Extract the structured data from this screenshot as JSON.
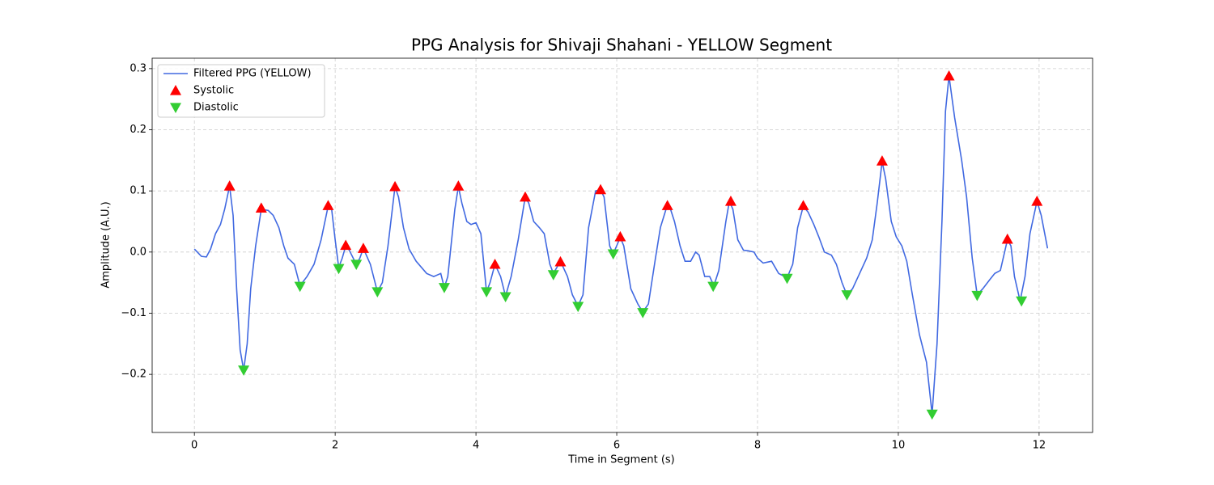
{
  "chart_data": {
    "type": "line",
    "title": "PPG Analysis for Shivaji Shahani - YELLOW Segment",
    "x_label": "Time in Segment (s)",
    "y_label": "Amplitude (A.U.)",
    "xlim": [
      -0.6,
      12.76
    ],
    "ylim": [
      -0.295,
      0.317
    ],
    "xticks": [
      0,
      2,
      4,
      6,
      8,
      10,
      12
    ],
    "yticks": [
      {
        "value": -0.2,
        "label": "−0.2"
      },
      {
        "value": -0.1,
        "label": "−0.1"
      },
      {
        "value": 0,
        "label": "0.0"
      },
      0.1,
      0.2,
      0.3
    ],
    "grid": true,
    "legend": "upper left",
    "series": [
      {
        "name": "Filtered PPG (YELLOW)",
        "type": "line",
        "color": "#4169e1",
        "x": [
          0,
          0.1,
          0.17,
          0.23,
          0.3,
          0.37,
          0.43,
          0.5,
          0.55,
          0.6,
          0.65,
          0.7,
          0.75,
          0.8,
          0.87,
          0.95,
          1.05,
          1.12,
          1.2,
          1.27,
          1.33,
          1.42,
          1.5,
          1.6,
          1.7,
          1.8,
          1.9,
          1.95,
          2.0,
          2.05,
          2.1,
          2.15,
          2.2,
          2.3,
          2.35,
          2.4,
          2.5,
          2.6,
          2.67,
          2.75,
          2.85,
          2.9,
          2.97,
          3.05,
          3.15,
          3.3,
          3.4,
          3.5,
          3.55,
          3.6,
          3.7,
          3.75,
          3.8,
          3.87,
          3.93,
          4.0,
          4.07,
          4.15,
          4.2,
          4.27,
          4.35,
          4.42,
          4.5,
          4.6,
          4.7,
          4.75,
          4.82,
          4.9,
          4.97,
          5.05,
          5.1,
          5.15,
          5.2,
          5.3,
          5.37,
          5.45,
          5.52,
          5.6,
          5.7,
          5.77,
          5.82,
          5.9,
          5.95,
          6.05,
          6.1,
          6.2,
          6.3,
          6.37,
          6.45,
          6.55,
          6.62,
          6.7,
          6.75,
          6.82,
          6.9,
          6.97,
          7.05,
          7.12,
          7.17,
          7.25,
          7.32,
          7.38,
          7.45,
          7.55,
          7.6,
          7.65,
          7.72,
          7.8,
          7.87,
          7.95,
          8.0,
          8.08,
          8.2,
          8.3,
          8.42,
          8.5,
          8.57,
          8.65,
          8.72,
          8.8,
          8.87,
          8.95,
          9.05,
          9.12,
          9.2,
          9.27,
          9.35,
          9.45,
          9.55,
          9.63,
          9.7,
          9.77,
          9.82,
          9.9,
          9.97,
          10.05,
          10.12,
          10.2,
          10.3,
          10.4,
          10.48,
          10.55,
          10.62,
          10.67,
          10.72,
          10.8,
          10.9,
          10.97,
          11.05,
          11.12,
          11.2,
          11.3,
          11.37,
          11.45,
          11.55,
          11.6,
          11.65,
          11.73,
          11.8,
          11.87,
          11.97,
          12.03,
          12.12
        ],
        "values": [
          0.005,
          -0.007,
          -0.008,
          0.005,
          0.03,
          0.045,
          0.07,
          0.108,
          0.06,
          -0.06,
          -0.16,
          -0.193,
          -0.15,
          -0.06,
          0.01,
          0.07,
          0.068,
          0.06,
          0.04,
          0.01,
          -0.01,
          -0.02,
          -0.055,
          -0.04,
          -0.02,
          0.02,
          0.075,
          0.07,
          0.02,
          -0.025,
          -0.01,
          0.01,
          0.003,
          -0.02,
          -0.01,
          0.006,
          -0.02,
          -0.065,
          -0.05,
          0.01,
          0.107,
          0.09,
          0.04,
          0.005,
          -0.015,
          -0.035,
          -0.04,
          -0.035,
          -0.058,
          -0.04,
          0.07,
          0.107,
          0.08,
          0.05,
          0.045,
          0.048,
          0.03,
          -0.065,
          -0.05,
          -0.02,
          -0.04,
          -0.072,
          -0.04,
          0.02,
          0.09,
          0.08,
          0.05,
          0.04,
          0.03,
          -0.02,
          -0.035,
          -0.025,
          -0.015,
          -0.04,
          -0.07,
          -0.088,
          -0.07,
          0.04,
          0.1,
          0.102,
          0.09,
          0.01,
          -0.003,
          0.024,
          0.01,
          -0.06,
          -0.085,
          -0.098,
          -0.085,
          -0.01,
          0.04,
          0.07,
          0.075,
          0.05,
          0.01,
          -0.015,
          -0.015,
          0.0,
          -0.005,
          -0.04,
          -0.04,
          -0.055,
          -0.03,
          0.05,
          0.083,
          0.07,
          0.02,
          0.003,
          0.002,
          0.0,
          -0.01,
          -0.018,
          -0.015,
          -0.035,
          -0.042,
          -0.02,
          0.04,
          0.075,
          0.065,
          0.045,
          0.025,
          0.0,
          -0.005,
          -0.02,
          -0.05,
          -0.07,
          -0.06,
          -0.035,
          -0.01,
          0.02,
          0.08,
          0.148,
          0.12,
          0.05,
          0.025,
          0.01,
          -0.015,
          -0.07,
          -0.135,
          -0.18,
          -0.265,
          -0.15,
          0.05,
          0.23,
          0.288,
          0.22,
          0.15,
          0.09,
          -0.01,
          -0.07,
          -0.06,
          -0.045,
          -0.035,
          -0.03,
          0.02,
          0.01,
          -0.04,
          -0.08,
          -0.04,
          0.03,
          0.083,
          0.06,
          0.006
        ]
      },
      {
        "name": "Systolic",
        "type": "scatter",
        "marker": "up",
        "color": "#ff0000",
        "x": [
          0.5,
          0.95,
          1.9,
          2.15,
          2.4,
          2.85,
          3.75,
          4.27,
          4.7,
          5.2,
          5.77,
          6.05,
          6.72,
          7.62,
          8.65,
          9.77,
          10.72,
          11.55,
          11.97
        ],
        "values": [
          0.108,
          0.072,
          0.076,
          0.011,
          0.006,
          0.107,
          0.108,
          -0.02,
          0.09,
          -0.016,
          0.102,
          0.025,
          0.076,
          0.083,
          0.076,
          0.149,
          0.288,
          0.021,
          0.083
        ]
      },
      {
        "name": "Diastolic",
        "type": "scatter",
        "marker": "down",
        "color": "#32cd32",
        "x": [
          0.7,
          1.5,
          2.05,
          2.3,
          2.6,
          3.55,
          4.15,
          4.42,
          5.1,
          5.45,
          5.95,
          6.37,
          7.37,
          8.42,
          9.27,
          10.48,
          11.12,
          11.75
        ],
        "values": [
          -0.193,
          -0.056,
          -0.027,
          -0.02,
          -0.065,
          -0.058,
          -0.065,
          -0.073,
          -0.037,
          -0.089,
          -0.003,
          -0.099,
          -0.056,
          -0.043,
          -0.07,
          -0.265,
          -0.071,
          -0.08
        ]
      }
    ]
  }
}
